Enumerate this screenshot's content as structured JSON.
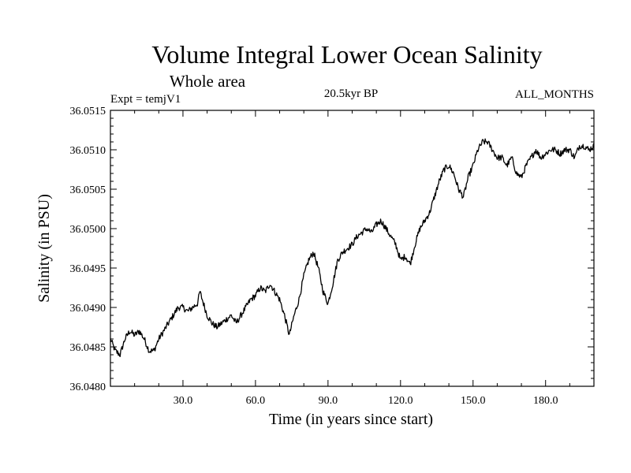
{
  "chart_data": {
    "type": "line",
    "title": "Volume Integral Lower Ocean Salinity",
    "subtitle": "Whole area",
    "annotations": {
      "left": "Expt = temjV1",
      "center": "20.5kyr BP",
      "right": "ALL_MONTHS"
    },
    "xlabel": "Time (in years since start)",
    "ylabel": "Salinity (in PSU)",
    "xlim": [
      0,
      200
    ],
    "ylim": [
      36.048,
      36.0515
    ],
    "x_ticks": [
      30,
      60,
      90,
      120,
      150,
      180
    ],
    "x_tick_labels": [
      "30.0",
      "60.0",
      "90.0",
      "120.0",
      "150.0",
      "180.0"
    ],
    "y_ticks": [
      36.048,
      36.0485,
      36.049,
      36.0495,
      36.05,
      36.0505,
      36.051,
      36.0515
    ],
    "y_tick_labels": [
      "36.0480",
      "36.0485",
      "36.0490",
      "36.0495",
      "36.0500",
      "36.0505",
      "36.0510",
      "36.0515"
    ],
    "grid": false,
    "line_color": "#000000",
    "series": [
      {
        "name": "Salinity",
        "x": [
          0,
          2,
          4,
          6,
          8,
          10,
          12,
          14,
          16,
          18,
          20,
          22,
          24,
          26,
          28,
          30,
          32,
          34,
          36,
          37,
          38,
          40,
          42,
          44,
          46,
          48,
          50,
          52,
          54,
          56,
          58,
          60,
          62,
          64,
          66,
          68,
          70,
          72,
          74,
          76,
          78,
          80,
          82,
          84,
          86,
          88,
          90,
          92,
          94,
          96,
          98,
          100,
          102,
          104,
          106,
          108,
          110,
          112,
          114,
          116,
          118,
          120,
          122,
          124,
          126,
          128,
          130,
          132,
          134,
          136,
          138,
          140,
          142,
          144,
          146,
          148,
          150,
          152,
          154,
          156,
          158,
          160,
          162,
          164,
          166,
          168,
          170,
          172,
          174,
          176,
          178,
          180,
          182,
          184,
          186,
          188,
          190,
          192,
          194,
          196,
          198,
          200
        ],
        "y": [
          36.0486,
          36.04845,
          36.0484,
          36.0486,
          36.0487,
          36.04865,
          36.0487,
          36.0486,
          36.04845,
          36.04845,
          36.0486,
          36.0487,
          36.0488,
          36.0489,
          36.049,
          36.049,
          36.04895,
          36.049,
          36.04905,
          36.0492,
          36.0491,
          36.0489,
          36.0488,
          36.04875,
          36.0488,
          36.04885,
          36.0489,
          36.0488,
          36.0489,
          36.049,
          36.0491,
          36.04915,
          36.04925,
          36.0492,
          36.0493,
          36.0492,
          36.0491,
          36.0489,
          36.04865,
          36.0489,
          36.0491,
          36.0494,
          36.0496,
          36.0497,
          36.0495,
          36.0492,
          36.04905,
          36.0493,
          36.0496,
          36.0497,
          36.04975,
          36.0498,
          36.0499,
          36.04995,
          36.05,
          36.04995,
          36.05005,
          36.0501,
          36.05,
          36.0499,
          36.0498,
          36.0496,
          36.04965,
          36.04955,
          36.0498,
          36.05,
          36.0501,
          36.0502,
          36.0504,
          36.0506,
          36.05075,
          36.0508,
          36.0507,
          36.0505,
          36.0504,
          36.05065,
          36.0508,
          36.051,
          36.0511,
          36.0511,
          36.051,
          36.0509,
          36.0509,
          36.0508,
          36.0509,
          36.0507,
          36.05065,
          36.0508,
          36.0509,
          36.051,
          36.0509,
          36.05095,
          36.051,
          36.051,
          36.05095,
          36.051,
          36.051,
          36.0509,
          36.05105,
          36.05105,
          36.051,
          36.05105
        ]
      }
    ]
  }
}
